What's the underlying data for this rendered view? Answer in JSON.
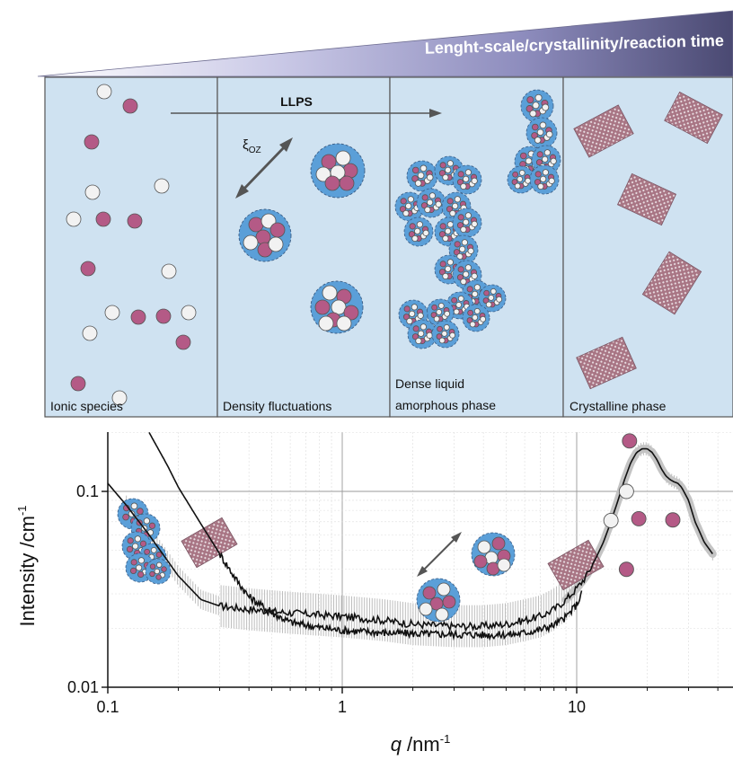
{
  "banner": {
    "text": "Lenght-scale/crystallinity/reaction time"
  },
  "arrow_label": "LLPS",
  "xi_label": {
    "main": "ξ",
    "sub": "OZ"
  },
  "panels": [
    {
      "label": "Ionic species"
    },
    {
      "label": "Density fluctuations"
    },
    {
      "label_line1": "Dense liquid",
      "label_line2": "amorphous phase"
    },
    {
      "label": "Crystalline phase"
    }
  ],
  "colors": {
    "panel_bg": "#cfe2f1",
    "panel_border": "#555555",
    "ion_pink": "#b45a86",
    "ion_white": "#f2f2f2",
    "cluster_blue": "#5b9fd8",
    "crystal": "#a87584",
    "banner_dark": "#4a4972",
    "curve": "#111111",
    "error_bars": "#bdbdbd"
  },
  "chart_data": {
    "type": "line",
    "xscale": "log",
    "yscale": "log",
    "xlim": [
      0.1,
      40
    ],
    "ylim": [
      0.01,
      0.2
    ],
    "xlabel": {
      "main": "q",
      "unit": " /nm",
      "sup": "-1"
    },
    "ylabel": {
      "main": "Intensity /cm",
      "sup": "-1"
    },
    "xticks": [
      {
        "value": 0.1,
        "label": "0.1"
      },
      {
        "value": 1,
        "label": "1"
      },
      {
        "value": 10,
        "label": "10"
      }
    ],
    "yticks": [
      {
        "value": 0.01,
        "label": "0.01"
      },
      {
        "value": 0.1,
        "label": "0.1"
      }
    ],
    "grid": true,
    "series": [
      {
        "x": [
          0.1,
          0.12,
          0.15,
          0.2,
          0.25,
          0.3,
          0.4,
          0.6,
          1,
          1.5,
          2,
          3,
          4,
          5,
          6,
          7,
          8,
          9,
          10,
          11,
          12,
          13,
          14,
          15,
          16,
          17,
          18,
          19,
          20,
          21,
          22,
          23,
          24,
          25,
          26,
          27,
          28,
          30,
          32,
          35,
          38
        ],
        "y": [
          0.11,
          0.085,
          0.06,
          0.037,
          0.028,
          0.026,
          0.025,
          0.024,
          0.023,
          0.022,
          0.021,
          0.0205,
          0.0205,
          0.021,
          0.022,
          0.023,
          0.025,
          0.028,
          0.032,
          0.037,
          0.045,
          0.055,
          0.07,
          0.09,
          0.115,
          0.14,
          0.158,
          0.165,
          0.165,
          0.158,
          0.145,
          0.13,
          0.12,
          0.115,
          0.112,
          0.11,
          0.105,
          0.09,
          0.07,
          0.055,
          0.048
        ]
      },
      {
        "x": [
          0.15,
          0.18,
          0.2,
          0.25,
          0.3,
          0.35,
          0.4,
          0.5,
          0.6,
          0.8,
          1,
          1.5,
          2,
          2.5,
          3,
          3.5,
          4,
          4.5,
          5,
          5.5,
          6,
          7,
          8,
          9,
          10,
          10.5
        ],
        "y": [
          0.2,
          0.135,
          0.105,
          0.068,
          0.048,
          0.036,
          0.029,
          0.024,
          0.0215,
          0.0202,
          0.0195,
          0.019,
          0.0188,
          0.0187,
          0.0186,
          0.0186,
          0.0185,
          0.0185,
          0.0186,
          0.0187,
          0.019,
          0.0197,
          0.0208,
          0.0228,
          0.0265,
          0.03
        ]
      }
    ],
    "scatter": [
      {
        "x": 14,
        "y": 0.071,
        "color": "white"
      },
      {
        "x": 16.3,
        "y": 0.1,
        "color": "white"
      },
      {
        "x": 16.8,
        "y": 0.181,
        "color": "pink"
      },
      {
        "x": 18.4,
        "y": 0.0725,
        "color": "pink"
      },
      {
        "x": 25.7,
        "y": 0.0715,
        "color": "pink"
      },
      {
        "x": 16.3,
        "y": 0.04,
        "color": "pink"
      }
    ]
  }
}
